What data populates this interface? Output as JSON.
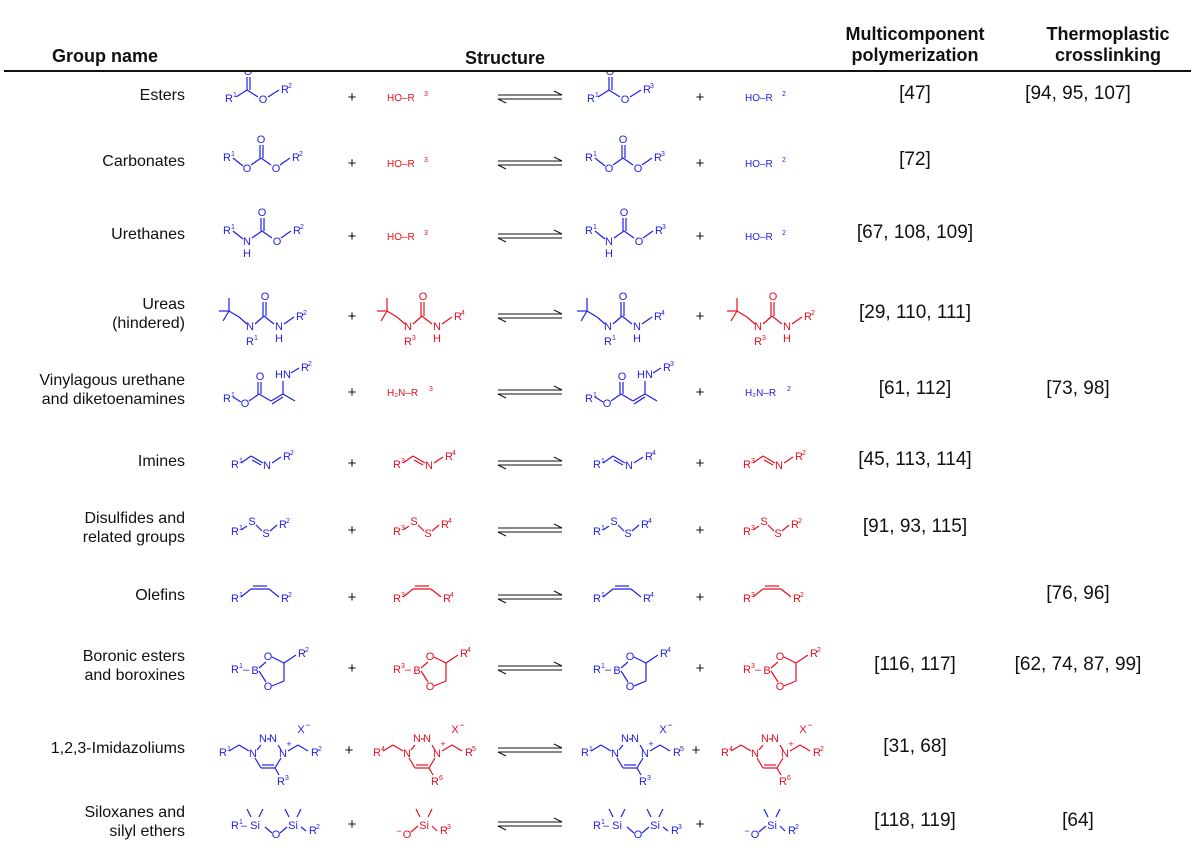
{
  "table": {
    "headers": {
      "group": "Group name",
      "structure": "Structure",
      "mcp": "Multicomponent polymerization",
      "tc": "Thermoplastic crosslinking"
    },
    "rows": [
      {
        "group": "Esters",
        "mcp": "[47]",
        "tc": "[94, 95, 107]"
      },
      {
        "group": "Carbonates",
        "mcp": "[72]",
        "tc": ""
      },
      {
        "group": "Urethanes",
        "mcp": "[67, 108, 109]",
        "tc": ""
      },
      {
        "group": "Ureas\n(hindered)",
        "mcp": "[29, 110, 111]",
        "tc": ""
      },
      {
        "group": "Vinylagous urethane\nand diketoenamines",
        "mcp": "[61, 112]",
        "tc": "[73, 98]"
      },
      {
        "group": "Imines",
        "mcp": "[45, 113, 114]",
        "tc": ""
      },
      {
        "group": "Disulfides and\nrelated groups",
        "mcp": "[91, 93, 115]",
        "tc": ""
      },
      {
        "group": "Olefins",
        "mcp": "",
        "tc": "[76, 96]"
      },
      {
        "group": "Boronic esters\nand boroxines",
        "mcp": "[116, 117]",
        "tc": "[62, 74, 87, 99]"
      },
      {
        "group": "1,2,3-Imidazoliums",
        "mcp": "[31, 68]",
        "tc": ""
      },
      {
        "group": "Siloxanes and\nsilyl ethers",
        "mcp": "[118, 119]",
        "tc": "[64]"
      }
    ]
  },
  "colors": {
    "reactant_a": "#1f1fe6",
    "reactant_b": "#e60f1e",
    "text": "#111111"
  },
  "labels": {
    "plus": "+",
    "ho_r3": "HO–R",
    "ho_r2": "HO–R",
    "h2n_r3": "H₂N–R",
    "h2n_r2": "H₂N–R",
    "R": "R",
    "O": "O",
    "N": "N",
    "H": "H",
    "HN": "HN",
    "S": "S",
    "B": "B",
    "Si": "Si",
    "X": "X",
    "minus": "−",
    "cplus": "+",
    "n1": "1",
    "n2": "2",
    "n3": "3",
    "n4": "4",
    "n5": "5",
    "n6": "6"
  }
}
